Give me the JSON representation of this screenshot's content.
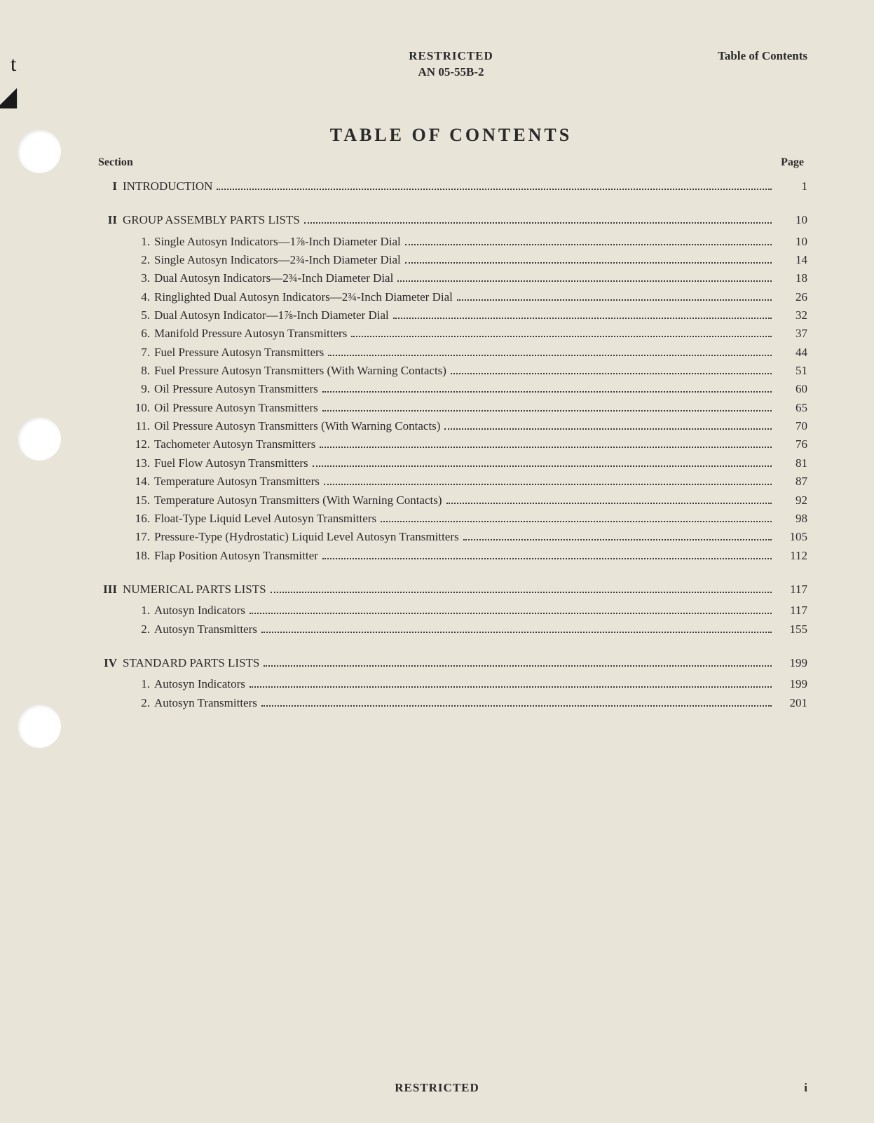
{
  "header": {
    "classification_top": "RESTRICTED",
    "doc_number": "AN 05-55B-2",
    "right_label": "Table of Contents"
  },
  "title": "TABLE OF CONTENTS",
  "column_labels": {
    "left": "Section",
    "right": "Page"
  },
  "sections": [
    {
      "num": "I",
      "title": "INTRODUCTION",
      "page": "1",
      "items": []
    },
    {
      "num": "II",
      "title": "GROUP ASSEMBLY PARTS LISTS",
      "page": "10",
      "items": [
        {
          "num": "1.",
          "title": "Single Autosyn Indicators—1⅞-Inch Diameter Dial",
          "page": "10"
        },
        {
          "num": "2.",
          "title": "Single Autosyn Indicators—2¾-Inch Diameter Dial",
          "page": "14"
        },
        {
          "num": "3.",
          "title": "Dual Autosyn Indicators—2¾-Inch Diameter Dial",
          "page": "18"
        },
        {
          "num": "4.",
          "title": "Ringlighted Dual Autosyn Indicators—2¾-Inch Diameter Dial",
          "page": "26"
        },
        {
          "num": "5.",
          "title": "Dual Autosyn Indicator—1⅞-Inch Diameter Dial",
          "page": "32"
        },
        {
          "num": "6.",
          "title": "Manifold Pressure Autosyn Transmitters",
          "page": "37"
        },
        {
          "num": "7.",
          "title": "Fuel Pressure Autosyn Transmitters",
          "page": "44"
        },
        {
          "num": "8.",
          "title": "Fuel Pressure Autosyn Transmitters (With Warning Contacts)",
          "page": "51"
        },
        {
          "num": "9.",
          "title": "Oil Pressure Autosyn Transmitters",
          "page": "60"
        },
        {
          "num": "10.",
          "title": "Oil Pressure Autosyn  Transmitters",
          "page": "65"
        },
        {
          "num": "11.",
          "title": "Oil Pressure Autosyn Transmitters (With Warning Contacts)",
          "page": "70"
        },
        {
          "num": "12.",
          "title": "Tachometer Autosyn Transmitters",
          "page": "76"
        },
        {
          "num": "13.",
          "title": "Fuel Flow Autosyn Transmitters",
          "page": "81"
        },
        {
          "num": "14.",
          "title": "Temperature Autosyn Transmitters",
          "page": "87"
        },
        {
          "num": "15.",
          "title": "Temperature Autosyn Transmitters (With Warning Contacts)",
          "page": "92"
        },
        {
          "num": "16.",
          "title": "Float-Type Liquid Level Autosyn Transmitters",
          "page": "98"
        },
        {
          "num": "17.",
          "title": "Pressure-Type (Hydrostatic) Liquid Level Autosyn Transmitters",
          "page": "105"
        },
        {
          "num": "18.",
          "title": "Flap Position Autosyn Transmitter",
          "page": "112"
        }
      ]
    },
    {
      "num": "III",
      "title": "NUMERICAL PARTS LISTS",
      "page": "117",
      "items": [
        {
          "num": "1.",
          "title": "Autosyn Indicators",
          "page": "117"
        },
        {
          "num": "2.",
          "title": "Autosyn Transmitters",
          "page": "155"
        }
      ]
    },
    {
      "num": "IV",
      "title": "STANDARD PARTS LISTS",
      "page": "199",
      "items": [
        {
          "num": "1.",
          "title": "Autosyn Indicators",
          "page": "199"
        },
        {
          "num": "2.",
          "title": "Autosyn Transmitters",
          "page": "201"
        }
      ]
    }
  ],
  "footer": {
    "classification_bottom": "RESTRICTED",
    "page_indicator": "i"
  },
  "colors": {
    "page_bg": "#e8e4d8",
    "text": "#2a2a2a",
    "hole": "#ffffff"
  },
  "typography": {
    "body_font": "Georgia, Times New Roman, serif",
    "title_size_pt": 20,
    "body_size_pt": 13,
    "header_size_pt": 13
  }
}
